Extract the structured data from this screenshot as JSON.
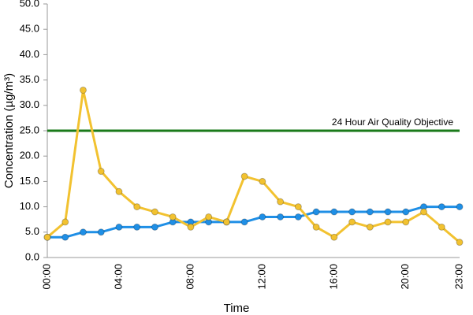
{
  "chart_data": {
    "type": "line",
    "x_label": "Time",
    "y_label": "Concentration (µg/m³)",
    "categories": [
      "00:00",
      null,
      null,
      null,
      "04:00",
      null,
      null,
      null,
      "08:00",
      null,
      null,
      null,
      "12:00",
      null,
      null,
      null,
      "16:00",
      null,
      null,
      null,
      "20:00",
      null,
      null,
      "23:00"
    ],
    "series": [
      {
        "color": "#1f8fe6",
        "values": [
          4,
          4,
          5,
          5,
          6,
          6,
          6,
          7,
          7,
          7,
          7,
          7,
          8,
          8,
          8,
          9,
          9,
          9,
          9,
          9,
          9,
          10,
          10,
          10
        ]
      },
      {
        "color": "#f2c230",
        "values": [
          4,
          7,
          33,
          17,
          13,
          10,
          9,
          8,
          6,
          8,
          7,
          16,
          15,
          11,
          10,
          6,
          4,
          7,
          6,
          7,
          7,
          9,
          6,
          3
        ]
      }
    ],
    "objective": {
      "value": 25,
      "label": "24 Hour Air Quality Objective",
      "color": "#1a7a1a"
    },
    "ylim": [
      0,
      50
    ],
    "yticks": [
      {
        "value": 0,
        "label": "0.0"
      },
      {
        "value": 5,
        "label": "5.0"
      },
      {
        "value": 10,
        "label": "10.0"
      },
      {
        "value": 15,
        "label": "15.0"
      },
      {
        "value": 20,
        "label": "20.0"
      },
      {
        "value": 25,
        "label": "25.0"
      },
      {
        "value": 30,
        "label": "30.0"
      },
      {
        "value": 35,
        "label": "35.0"
      },
      {
        "value": 40,
        "label": "40.0"
      },
      {
        "value": 45,
        "label": "45.0"
      },
      {
        "value": 50,
        "label": "50.0"
      }
    ],
    "grid": false
  }
}
